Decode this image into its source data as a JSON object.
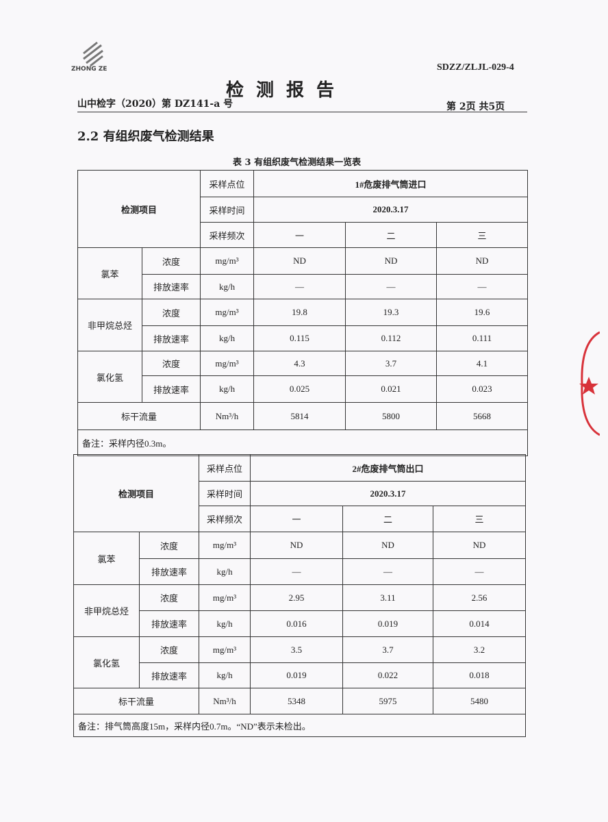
{
  "header": {
    "logo_text": "ZHONG ZE",
    "doc_code": "SDZZ/ZLJL-029-4",
    "title": "检测报告",
    "report_no": "山中检字（2020）第 DZ141-a 号",
    "page_no": "第 2页  共5页"
  },
  "section_title": "2.2 有组织废气检测结果",
  "table_caption": "表 3 有组织废气检测结果一览表",
  "tables": [
    {
      "item_label": "检测项目",
      "point_label": "采样点位",
      "point": "1#危废排气筒进口",
      "time_label": "采样时间",
      "time": "2020.3.17",
      "freq_label": "采样频次",
      "freqs": [
        "一",
        "二",
        "三"
      ],
      "pollutants": [
        {
          "name": "氯苯",
          "rows": [
            {
              "param": "浓度",
              "unit": "mg/m³",
              "values": [
                "ND",
                "ND",
                "ND"
              ]
            },
            {
              "param": "排放速率",
              "unit": "kg/h",
              "values": [
                "—",
                "—",
                "—"
              ]
            }
          ]
        },
        {
          "name": "非甲烷总烃",
          "rows": [
            {
              "param": "浓度",
              "unit": "mg/m³",
              "values": [
                "19.8",
                "19.3",
                "19.6"
              ]
            },
            {
              "param": "排放速率",
              "unit": "kg/h",
              "values": [
                "0.115",
                "0.112",
                "0.111"
              ]
            }
          ]
        },
        {
          "name": "氯化氢",
          "rows": [
            {
              "param": "浓度",
              "unit": "mg/m³",
              "values": [
                "4.3",
                "3.7",
                "4.1"
              ]
            },
            {
              "param": "排放速率",
              "unit": "kg/h",
              "values": [
                "0.025",
                "0.021",
                "0.023"
              ]
            }
          ]
        }
      ],
      "flow": {
        "label": "标干流量",
        "unit": "Nm³/h",
        "values": [
          "5814",
          "5800",
          "5668"
        ]
      },
      "note": "备注：采样内径0.3m。"
    },
    {
      "item_label": "检测项目",
      "point_label": "采样点位",
      "point": "2#危废排气筒出口",
      "time_label": "采样时间",
      "time": "2020.3.17",
      "freq_label": "采样频次",
      "freqs": [
        "一",
        "二",
        "三"
      ],
      "pollutants": [
        {
          "name": "氯苯",
          "rows": [
            {
              "param": "浓度",
              "unit": "mg/m³",
              "values": [
                "ND",
                "ND",
                "ND"
              ]
            },
            {
              "param": "排放速率",
              "unit": "kg/h",
              "values": [
                "—",
                "—",
                "—"
              ]
            }
          ]
        },
        {
          "name": "非甲烷总烃",
          "rows": [
            {
              "param": "浓度",
              "unit": "mg/m³",
              "values": [
                "2.95",
                "3.11",
                "2.56"
              ]
            },
            {
              "param": "排放速率",
              "unit": "kg/h",
              "values": [
                "0.016",
                "0.019",
                "0.014"
              ]
            }
          ]
        },
        {
          "name": "氯化氢",
          "rows": [
            {
              "param": "浓度",
              "unit": "mg/m³",
              "values": [
                "3.5",
                "3.7",
                "3.2"
              ]
            },
            {
              "param": "排放速率",
              "unit": "kg/h",
              "values": [
                "0.019",
                "0.022",
                "0.018"
              ]
            }
          ]
        }
      ],
      "flow": {
        "label": "标干流量",
        "unit": "Nm³/h",
        "values": [
          "5348",
          "5975",
          "5480"
        ]
      },
      "note": "备注：排气筒高度15m，采样内径0.7m。“ND”表示未检出。"
    }
  ],
  "colors": {
    "stamp": "#d8323a"
  }
}
